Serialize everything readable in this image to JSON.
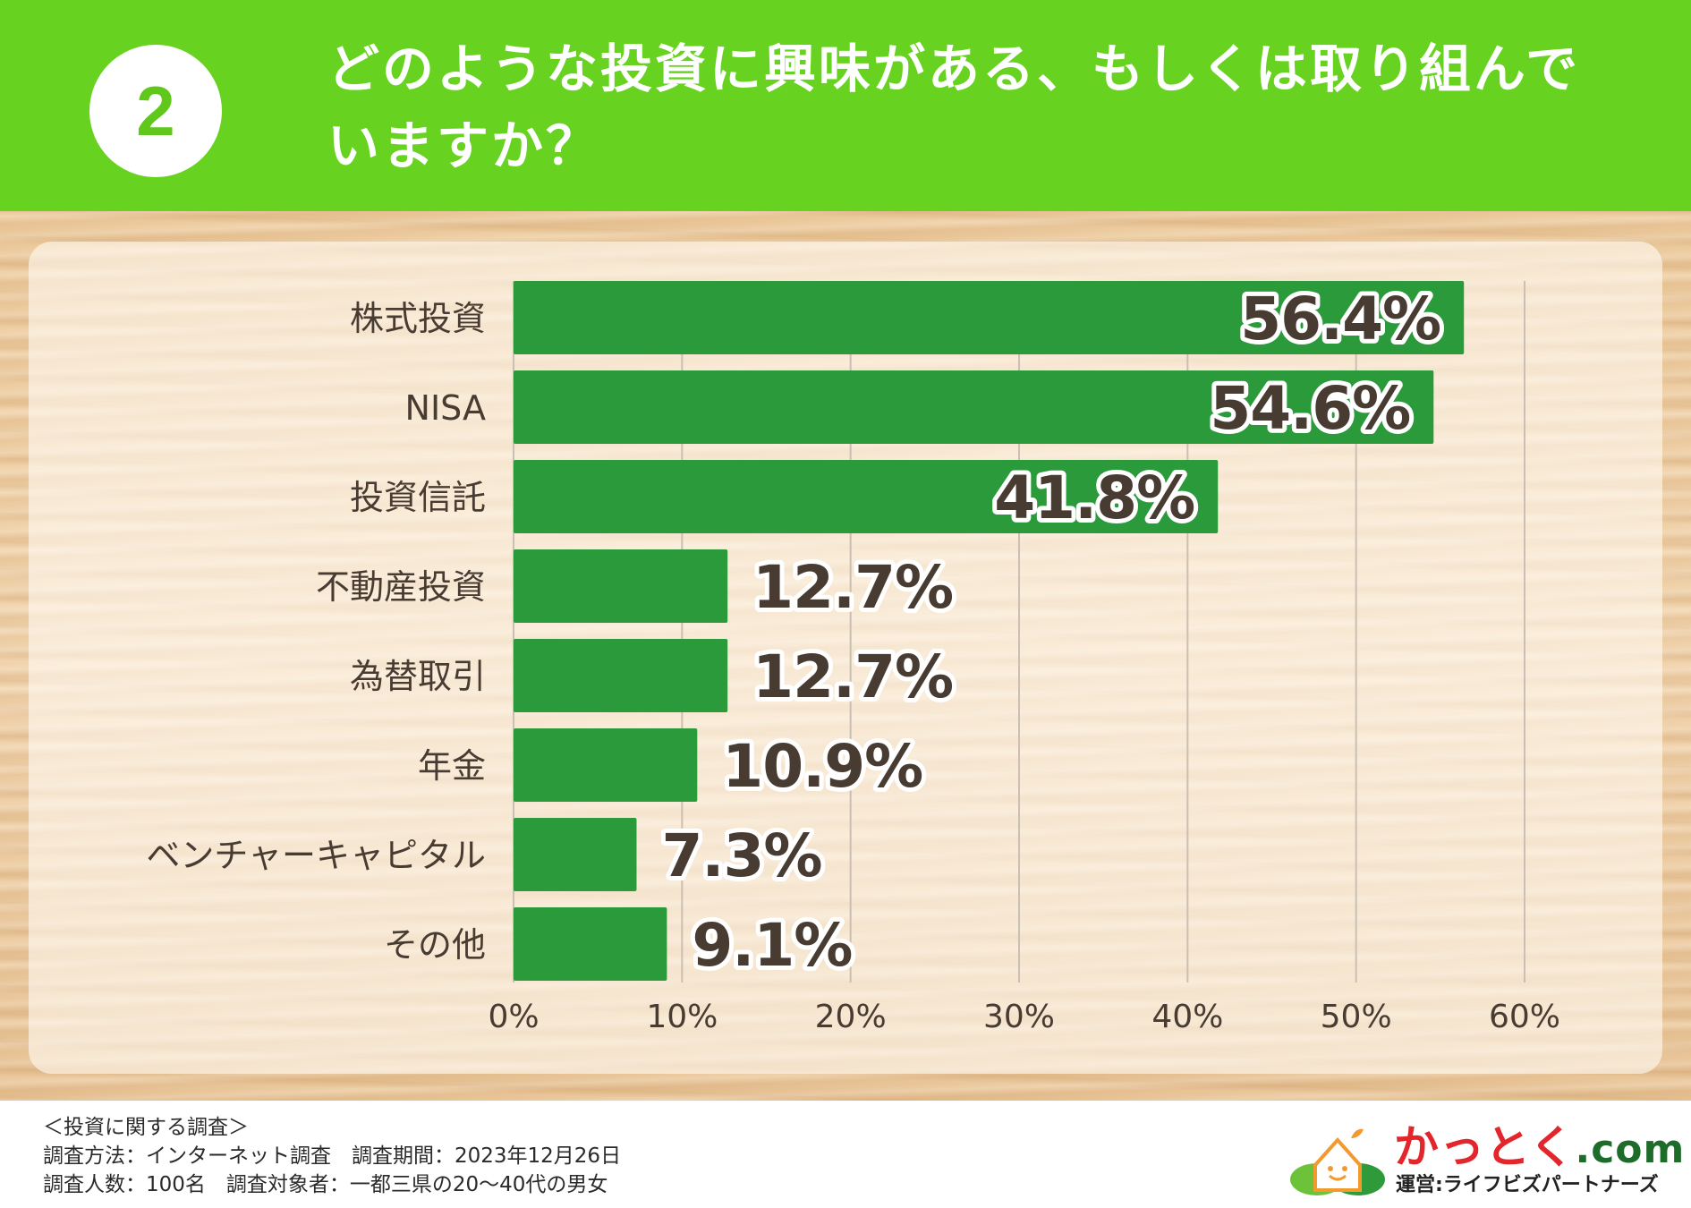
{
  "header": {
    "number": "2",
    "title_line1": "どのような投資に興味がある、もしくは取り組んで",
    "title_line2": "いますか？"
  },
  "chart_data": {
    "type": "bar",
    "orientation": "horizontal",
    "categories": [
      "株式投資",
      "NISA",
      "投資信託",
      "不動産投資",
      "為替取引",
      "年金",
      "ベンチャーキャピタル",
      "その他"
    ],
    "values": [
      56.4,
      54.6,
      41.8,
      12.7,
      12.7,
      10.9,
      7.3,
      9.1
    ],
    "value_labels": [
      "56.4%",
      "54.6%",
      "41.8%",
      "12.7%",
      "12.7%",
      "10.9%",
      "7.3%",
      "9.1%"
    ],
    "xlim": [
      0,
      60
    ],
    "ticks": [
      0,
      10,
      20,
      30,
      40,
      50,
      60
    ],
    "tick_labels": [
      "0%",
      "10%",
      "20%",
      "30%",
      "40%",
      "50%",
      "60%"
    ],
    "grid": true,
    "title": "",
    "xlabel": "",
    "ylabel": ""
  },
  "colors": {
    "header_green": "#67d21f",
    "bar_green": "#2a9a3b",
    "label_text": "#483c32",
    "grid": "#c9bfb2"
  },
  "footer": {
    "line1": "＜投資に関する調査＞",
    "line2": "調査方法：インターネット調査　調査期間：2023年12月26日",
    "line3": "調査人数：100名　調査対象者：一都三県の20〜40代の男女"
  },
  "logo": {
    "name": "かっとく",
    "suffix": ".com",
    "operator": "運営:ライフビズパートナーズ",
    "icon": "house-sprout-icon"
  }
}
